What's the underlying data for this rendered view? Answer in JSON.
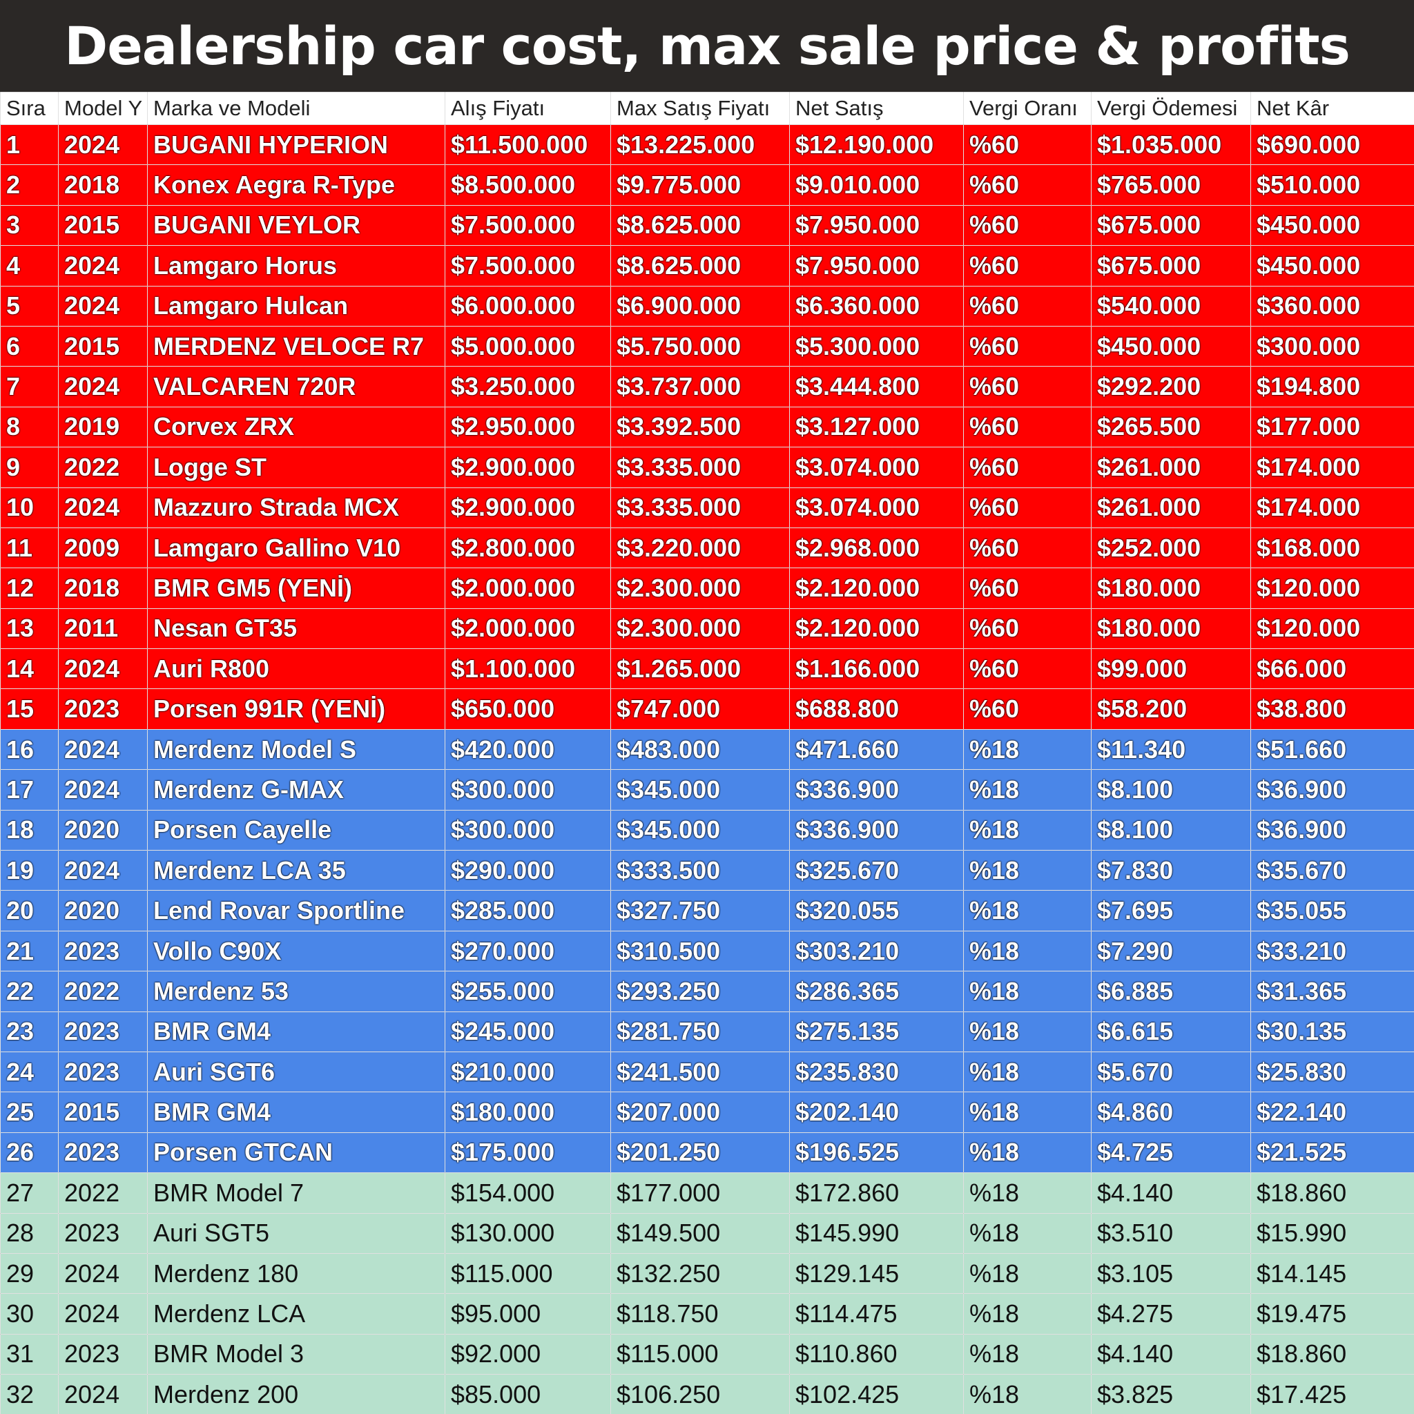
{
  "header": {
    "title": "Dealership car cost, max sale price & profits"
  },
  "table": {
    "columns": [
      "Sıra",
      "Model Y",
      "Marka ve Modeli",
      "Alış Fiyatı",
      "Max Satış Fiyatı",
      "Net Satış",
      "Vergi Oranı",
      "Vergi Ödemesi",
      "Net Kâr"
    ],
    "rows": [
      [
        "1",
        "2024",
        "BUGANI HYPERION",
        "$11.500.000",
        "$13.225.000",
        "$12.190.000",
        "%60",
        "$1.035.000",
        "$690.000"
      ],
      [
        "2",
        "2018",
        "Konex Aegra R-Type",
        "$8.500.000",
        "$9.775.000",
        "$9.010.000",
        "%60",
        "$765.000",
        "$510.000"
      ],
      [
        "3",
        "2015",
        "BUGANI VEYLOR",
        "$7.500.000",
        "$8.625.000",
        "$7.950.000",
        "%60",
        "$675.000",
        "$450.000"
      ],
      [
        "4",
        "2024",
        "Lamgaro Horus",
        "$7.500.000",
        "$8.625.000",
        "$7.950.000",
        "%60",
        "$675.000",
        "$450.000"
      ],
      [
        "5",
        "2024",
        "Lamgaro Hulcan",
        "$6.000.000",
        "$6.900.000",
        "$6.360.000",
        "%60",
        "$540.000",
        "$360.000"
      ],
      [
        "6",
        "2015",
        "MERDENZ VELOCE R7",
        "$5.000.000",
        "$5.750.000",
        "$5.300.000",
        "%60",
        "$450.000",
        "$300.000"
      ],
      [
        "7",
        "2024",
        "VALCAREN 720R",
        "$3.250.000",
        "$3.737.000",
        "$3.444.800",
        "%60",
        "$292.200",
        "$194.800"
      ],
      [
        "8",
        "2019",
        "Corvex ZRX",
        "$2.950.000",
        "$3.392.500",
        "$3.127.000",
        "%60",
        "$265.500",
        "$177.000"
      ],
      [
        "9",
        "2022",
        "Logge ST",
        "$2.900.000",
        "$3.335.000",
        "$3.074.000",
        "%60",
        "$261.000",
        "$174.000"
      ],
      [
        "10",
        "2024",
        "Mazzuro Strada MCX",
        "$2.900.000",
        "$3.335.000",
        "$3.074.000",
        "%60",
        "$261.000",
        "$174.000"
      ],
      [
        "11",
        "2009",
        "Lamgaro Gallino V10",
        "$2.800.000",
        "$3.220.000",
        "$2.968.000",
        "%60",
        "$252.000",
        "$168.000"
      ],
      [
        "12",
        "2018",
        "BMR GM5 (YENİ)",
        "$2.000.000",
        "$2.300.000",
        "$2.120.000",
        "%60",
        "$180.000",
        "$120.000"
      ],
      [
        "13",
        "2011",
        "Nesan GT35",
        "$2.000.000",
        "$2.300.000",
        "$2.120.000",
        "%60",
        "$180.000",
        "$120.000"
      ],
      [
        "14",
        "2024",
        "Auri R800",
        "$1.100.000",
        "$1.265.000",
        "$1.166.000",
        "%60",
        "$99.000",
        "$66.000"
      ],
      [
        "15",
        "2023",
        "Porsen 991R (YENİ)",
        "$650.000",
        "$747.000",
        "$688.800",
        "%60",
        "$58.200",
        "$38.800"
      ],
      [
        "16",
        "2024",
        "Merdenz Model S",
        "$420.000",
        "$483.000",
        "$471.660",
        "%18",
        "$11.340",
        "$51.660"
      ],
      [
        "17",
        "2024",
        "Merdenz G-MAX",
        "$300.000",
        "$345.000",
        "$336.900",
        "%18",
        "$8.100",
        "$36.900"
      ],
      [
        "18",
        "2020",
        "Porsen Cayelle",
        "$300.000",
        "$345.000",
        "$336.900",
        "%18",
        "$8.100",
        "$36.900"
      ],
      [
        "19",
        "2024",
        "Merdenz LCA 35",
        "$290.000",
        "$333.500",
        "$325.670",
        "%18",
        "$7.830",
        "$35.670"
      ],
      [
        "20",
        "2020",
        "Lend Rovar Sportline",
        "$285.000",
        "$327.750",
        "$320.055",
        "%18",
        "$7.695",
        "$35.055"
      ],
      [
        "21",
        "2023",
        "Vollo C90X",
        "$270.000",
        "$310.500",
        "$303.210",
        "%18",
        "$7.290",
        "$33.210"
      ],
      [
        "22",
        "2022",
        "Merdenz 53",
        "$255.000",
        "$293.250",
        "$286.365",
        "%18",
        "$6.885",
        "$31.365"
      ],
      [
        "23",
        "2023",
        "BMR GM4",
        "$245.000",
        "$281.750",
        "$275.135",
        "%18",
        "$6.615",
        "$30.135"
      ],
      [
        "24",
        "2023",
        "Auri SGT6",
        "$210.000",
        "$241.500",
        "$235.830",
        "%18",
        "$5.670",
        "$25.830"
      ],
      [
        "25",
        "2015",
        "BMR GM4",
        "$180.000",
        "$207.000",
        "$202.140",
        "%18",
        "$4.860",
        "$22.140"
      ],
      [
        "26",
        "2023",
        "Porsen GTCAN",
        "$175.000",
        "$201.250",
        "$196.525",
        "%18",
        "$4.725",
        "$21.525"
      ],
      [
        "27",
        "2022",
        "BMR Model 7",
        "$154.000",
        "$177.000",
        "$172.860",
        "%18",
        "$4.140",
        "$18.860"
      ],
      [
        "28",
        "2023",
        "Auri SGT5",
        "$130.000",
        "$149.500",
        "$145.990",
        "%18",
        "$3.510",
        "$15.990"
      ],
      [
        "29",
        "2024",
        "Merdenz 180",
        "$115.000",
        "$132.250",
        "$129.145",
        "%18",
        "$3.105",
        "$14.145"
      ],
      [
        "30",
        "2024",
        "Merdenz LCA",
        "$95.000",
        "$118.750",
        "$114.475",
        "%18",
        "$4.275",
        "$19.475"
      ],
      [
        "31",
        "2023",
        "BMR Model 3",
        "$92.000",
        "$115.000",
        "$110.860",
        "%18",
        "$4.140",
        "$18.860"
      ],
      [
        "32",
        "2024",
        "Merdenz 200",
        "$85.000",
        "$106.250",
        "$102.425",
        "%18",
        "$3.825",
        "$17.425"
      ]
    ]
  }
}
